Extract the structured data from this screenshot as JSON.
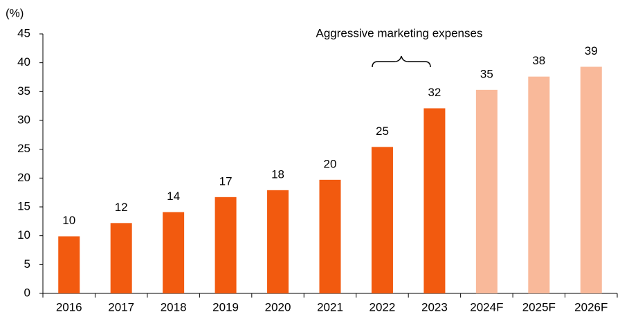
{
  "chart_data": {
    "type": "bar",
    "y_label": "(%)",
    "annotation": "Aggressive marketing expenses",
    "categories": [
      "2016",
      "2017",
      "2018",
      "2019",
      "2020",
      "2021",
      "2022",
      "2023",
      "2024F",
      "2025F",
      "2026F"
    ],
    "values": [
      9.9,
      12.2,
      14.1,
      16.7,
      17.9,
      19.7,
      25.4,
      32.1,
      35.3,
      37.6,
      39.3
    ],
    "value_labels": [
      "10",
      "12",
      "14",
      "17",
      "18",
      "20",
      "25",
      "32",
      "35",
      "38",
      "39"
    ],
    "colors": [
      "#f25a0f",
      "#f25a0f",
      "#f25a0f",
      "#f25a0f",
      "#f25a0f",
      "#f25a0f",
      "#f25a0f",
      "#f25a0f",
      "#f9b99a",
      "#f9b99a",
      "#f9b99a"
    ],
    "ylim": [
      0,
      45
    ],
    "yticks": [
      0,
      5,
      10,
      15,
      20,
      25,
      30,
      35,
      40,
      45
    ],
    "grid": false
  }
}
